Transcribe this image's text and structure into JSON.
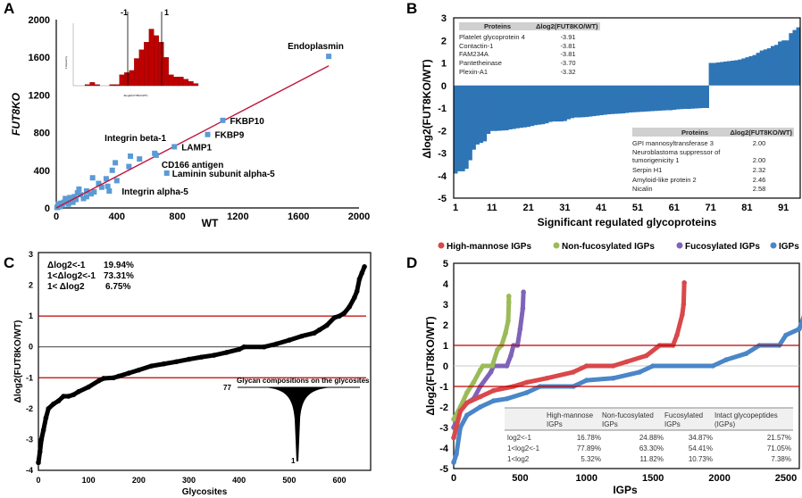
{
  "panel_labels": [
    "A",
    "B",
    "C",
    "D"
  ],
  "chart_data": [
    {
      "type": "scatter",
      "panel": "A",
      "xlabel": "WT",
      "ylabel": "FUT8KO",
      "xlim": [
        0,
        2000
      ],
      "ylim": [
        0,
        2000
      ],
      "xticks": [
        0,
        400,
        800,
        1200,
        1600,
        2000
      ],
      "yticks": [
        0,
        400,
        800,
        1200,
        1600,
        2000
      ],
      "marker_color": "#5b9bd5",
      "trendline_color": "#c0143c",
      "trendline": {
        "x": [
          0,
          1800
        ],
        "y": [
          0,
          1510
        ]
      },
      "labeled_points": [
        {
          "label": "Endoplasmin",
          "x": 1800,
          "y": 1610
        },
        {
          "label": "FKBP10",
          "x": 1100,
          "y": 930
        },
        {
          "label": "FKBP9",
          "x": 1000,
          "y": 780
        },
        {
          "label": "LAMP1",
          "x": 780,
          "y": 650
        },
        {
          "label": "Integrin beta-1",
          "x": 650,
          "y": 580
        },
        {
          "label": "CD166 antigen",
          "x": 660,
          "y": 560
        },
        {
          "label": "Laminin subunit alpha-5",
          "x": 730,
          "y": 370
        },
        {
          "label": "Integrin alpha-5",
          "x": 350,
          "y": 180
        }
      ],
      "points": [
        [
          490,
          550
        ],
        [
          550,
          520
        ],
        [
          480,
          440
        ],
        [
          390,
          480
        ],
        [
          370,
          400
        ],
        [
          330,
          310
        ],
        [
          400,
          290
        ],
        [
          240,
          320
        ],
        [
          280,
          260
        ],
        [
          300,
          220
        ],
        [
          340,
          230
        ],
        [
          150,
          200
        ],
        [
          200,
          180
        ],
        [
          230,
          150
        ],
        [
          180,
          100
        ],
        [
          100,
          80
        ],
        [
          50,
          60
        ],
        [
          80,
          40
        ],
        [
          20,
          20
        ],
        [
          10,
          10
        ],
        [
          120,
          120
        ],
        [
          60,
          100
        ],
        [
          30,
          50
        ],
        [
          140,
          160
        ],
        [
          200,
          120
        ],
        [
          160,
          140
        ],
        [
          90,
          110
        ],
        [
          40,
          30
        ],
        [
          70,
          70
        ],
        [
          110,
          60
        ],
        [
          130,
          90
        ],
        [
          250,
          170
        ],
        [
          5,
          5
        ],
        [
          15,
          40
        ],
        [
          25,
          15
        ]
      ],
      "inset": {
        "type": "bar",
        "xlabel": "Δlog2(FUT8KO/WT)",
        "ylabel": "Frequency",
        "bar_color": "#c00000",
        "values": [
          0,
          0,
          1,
          3,
          1,
          0,
          0,
          1,
          1,
          10,
          12,
          14,
          25,
          33,
          40,
          52,
          46,
          40,
          26,
          10,
          8,
          8,
          6,
          4,
          2
        ],
        "reference_lines": [
          {
            "label": "-1",
            "value": -1
          },
          {
            "label": "1",
            "value": 1
          }
        ]
      }
    },
    {
      "type": "bar",
      "panel": "B",
      "xlabel": "Significant regulated glycoproteins",
      "ylabel": "Δlog2(FUT8KO/WT)",
      "ylim": [
        -5,
        3
      ],
      "yticks": [
        3,
        2,
        1,
        0,
        -1,
        -2,
        -3,
        -4,
        -5
      ],
      "xticks": [
        1,
        11,
        21,
        31,
        41,
        51,
        61,
        71,
        81,
        91
      ],
      "bar_color": "#2e75b6",
      "values": [
        -3.91,
        -3.81,
        -3.81,
        -3.7,
        -3.32,
        -2.85,
        -2.62,
        -2.55,
        -2.48,
        -2.15,
        -2.02,
        -2.02,
        -2.01,
        -2.0,
        -1.99,
        -1.95,
        -1.93,
        -1.9,
        -1.88,
        -1.86,
        -1.84,
        -1.8,
        -1.76,
        -1.74,
        -1.72,
        -1.68,
        -1.62,
        -1.6,
        -1.6,
        -1.6,
        -1.58,
        -1.5,
        -1.45,
        -1.42,
        -1.42,
        -1.41,
        -1.4,
        -1.38,
        -1.36,
        -1.34,
        -1.32,
        -1.3,
        -1.28,
        -1.27,
        -1.26,
        -1.25,
        -1.24,
        -1.22,
        -1.2,
        -1.19,
        -1.18,
        -1.17,
        -1.16,
        -1.15,
        -1.14,
        -1.13,
        -1.12,
        -1.11,
        -1.1,
        -1.1,
        -1.08,
        -1.06,
        -1.05,
        -1.04,
        -1.04,
        -1.03,
        -1.02,
        -1.01,
        -1.0,
        -1.0,
        1.0,
        1.0,
        1.02,
        1.04,
        1.06,
        1.08,
        1.1,
        1.12,
        1.15,
        1.2,
        1.25,
        1.3,
        1.35,
        1.45,
        1.55,
        1.6,
        1.65,
        1.75,
        1.8,
        1.95,
        2.0,
        2.0,
        2.32,
        2.46,
        2.58
      ],
      "table_down": {
        "headers": [
          "Proteins",
          "Δlog2(FUT8KO/WT)"
        ],
        "rows": [
          {
            "protein": "Platelet glycoprotein 4",
            "value": "-3.91"
          },
          {
            "protein": "Contactin-1",
            "value": "-3.81"
          },
          {
            "protein": "FAM234A",
            "value": "-3.81"
          },
          {
            "protein": "Pantetheinase",
            "value": "-3.70"
          },
          {
            "protein": "Plexin-A1",
            "value": "-3.32"
          }
        ]
      },
      "table_up": {
        "headers": [
          "Proteins",
          "Δlog2(FUT8KO/WT)"
        ],
        "rows": [
          {
            "protein": "GPI mannosyltransferase 3",
            "value": "2.00"
          },
          {
            "protein": "Neuroblastoma suppressor of",
            "protein_line2": "tumorigenicity 1",
            "value": "2.00"
          },
          {
            "protein": "Serpin H1",
            "value": "2.32"
          },
          {
            "protein": "Amyloid-like protein 2",
            "value": "2.46"
          },
          {
            "protein": "Nicalin",
            "value": "2.58"
          }
        ]
      }
    },
    {
      "type": "scatter",
      "panel": "C",
      "xlabel": "Glycosites",
      "ylabel": "Δlog2(FUT8KO/WT)",
      "xlim": [
        0,
        650
      ],
      "ylim": [
        -4,
        3
      ],
      "xticks": [
        0,
        100,
        200,
        300,
        400,
        500,
        600
      ],
      "yticks": [
        3,
        2,
        1,
        0,
        -1,
        -2,
        -3,
        -4
      ],
      "threshold_lines": [
        1,
        -1
      ],
      "threshold_color": "#c00000",
      "x": [
        0,
        3,
        6,
        10,
        15,
        20,
        30,
        40,
        50,
        60,
        70,
        80,
        100,
        120,
        130,
        150,
        160,
        180,
        200,
        225,
        250,
        275,
        300,
        325,
        350,
        375,
        400,
        410,
        450,
        475,
        500,
        525,
        550,
        560,
        575,
        590,
        600,
        610,
        620,
        630,
        635,
        640,
        645,
        650
      ],
      "y": [
        -3.75,
        -3.4,
        -3.0,
        -2.7,
        -2.3,
        -2.0,
        -1.85,
        -1.75,
        -1.6,
        -1.6,
        -1.55,
        -1.45,
        -1.3,
        -1.1,
        -1.02,
        -1.0,
        -0.95,
        -0.85,
        -0.75,
        -0.62,
        -0.55,
        -0.48,
        -0.4,
        -0.33,
        -0.27,
        -0.18,
        -0.08,
        0,
        0,
        0.1,
        0.22,
        0.35,
        0.45,
        0.55,
        0.7,
        0.95,
        1.0,
        1.1,
        1.3,
        1.6,
        1.8,
        2.2,
        2.4,
        2.6
      ],
      "summary": [
        {
          "label": "Δlog2<-1",
          "value": "19.94%"
        },
        {
          "label": "1<Δlog2<-1",
          "value": "73.31%"
        },
        {
          "label": "1< Δlog2",
          "value": "6.75%"
        }
      ],
      "inset": {
        "title": "Glycan compositions on the glycosites",
        "max_label": "77",
        "min_label": "1"
      }
    },
    {
      "type": "scatter",
      "panel": "D",
      "xlabel": "IGPs",
      "ylabel": "Δlog2(FUT8KO/WT)",
      "xlim": [
        0,
        2700
      ],
      "ylim": [
        -5,
        5
      ],
      "xticks": [
        0,
        500,
        1000,
        1500,
        2000,
        2500
      ],
      "yticks": [
        5,
        4,
        3,
        2,
        1,
        0,
        -1,
        -2,
        -3,
        -4,
        -5
      ],
      "threshold_lines": [
        1,
        -1
      ],
      "threshold_color": "#c00000",
      "legend_position": "top",
      "series": [
        {
          "name": "High-mannose IGPs",
          "color": "#d9484a",
          "x": [
            0,
            50,
            100,
            200,
            300,
            450,
            550,
            700,
            900,
            1000,
            1200,
            1300,
            1450,
            1550,
            1650,
            1680,
            1720,
            1730,
            1735
          ],
          "y": [
            -3.5,
            -2.2,
            -1.8,
            -1.5,
            -1.2,
            -1,
            -0.8,
            -0.6,
            -0.3,
            0,
            0,
            0.2,
            0.5,
            1,
            1,
            1.5,
            2.5,
            3,
            4.05
          ]
        },
        {
          "name": "Non-fucosylated IGPs",
          "color": "#9bbb59",
          "x": [
            0,
            50,
            100,
            150,
            200,
            220,
            290,
            330,
            360,
            390,
            410,
            415,
            415
          ],
          "y": [
            -2.6,
            -2.0,
            -1.3,
            -0.8,
            -0.2,
            0,
            0,
            0.8,
            1,
            1.6,
            2.2,
            3.1,
            3.4
          ]
        },
        {
          "name": "Fucosylated IGPs",
          "color": "#7f63b8",
          "x": [
            0,
            50,
            100,
            150,
            200,
            280,
            300,
            400,
            430,
            450,
            480,
            500,
            520,
            525
          ],
          "y": [
            -3,
            -2.2,
            -1.8,
            -1.6,
            -1,
            -0.3,
            0,
            0,
            0.5,
            1,
            1,
            1.8,
            2.8,
            3.6
          ]
        },
        {
          "name": "IGPs",
          "color": "#4a86c8",
          "x": [
            0,
            20,
            50,
            100,
            200,
            300,
            400,
            550,
            650,
            900,
            1000,
            1200,
            1400,
            1500,
            1950,
            2050,
            2200,
            2300,
            2450,
            2500,
            2600,
            2640,
            2660,
            2665
          ],
          "y": [
            -4.7,
            -4.3,
            -3.0,
            -2.4,
            -2.0,
            -1.7,
            -1.6,
            -1.3,
            -1.0,
            -1.0,
            -0.7,
            -0.6,
            -0.3,
            0,
            0,
            0.3,
            0.6,
            1,
            1,
            1.5,
            1.8,
            2.5,
            3.5,
            4.05
          ]
        }
      ],
      "table": {
        "headers": [
          [
            "High-mannose",
            "IGPs"
          ],
          [
            "Non-fucosylated",
            "IGPs"
          ],
          [
            "Fucosylated",
            "IGPs"
          ],
          [
            "Intact glycopeptides",
            "(IGPs)"
          ]
        ],
        "rows": [
          {
            "label": "log2<-1",
            "values": [
              "16.78%",
              "24.88%",
              "34.87%",
              "21.57%"
            ]
          },
          {
            "label": "1<log2<-1",
            "values": [
              "77.89%",
              "63.30%",
              "54.41%",
              "71.05%"
            ]
          },
          {
            "label": "1<log2",
            "values": [
              "5.32%",
              "11.82%",
              "10.73%",
              "7.38%"
            ]
          }
        ]
      }
    }
  ]
}
